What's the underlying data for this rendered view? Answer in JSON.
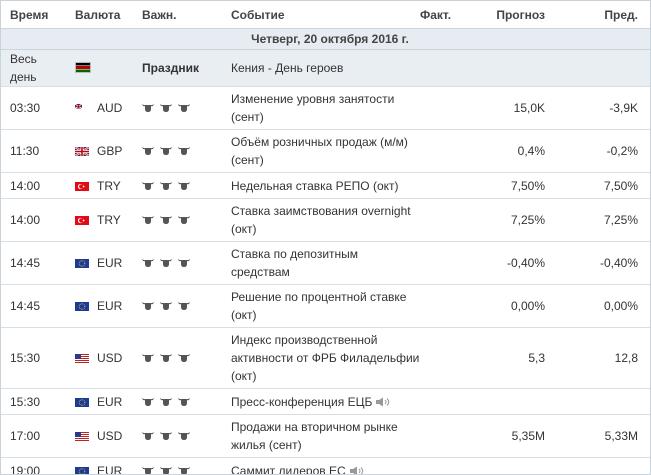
{
  "header": {
    "time": "Время",
    "currency": "Валюта",
    "importance": "Важн.",
    "event": "Событие",
    "actual": "Факт.",
    "forecast": "Прогноз",
    "previous": "Пред."
  },
  "date_label": "Четверг, 20 октября 2016 г.",
  "holiday": {
    "time": "Весь день",
    "flag": "kenya-flag",
    "importance": "Праздник",
    "event": "Кения - День героев"
  },
  "events": [
    {
      "time": "03:30",
      "flag": "australia-flag",
      "currency": "AUD",
      "event": "Изменение уровня занятости (сент)",
      "actual": "",
      "forecast": "15,0K",
      "previous": "-3,9K",
      "speech": false
    },
    {
      "time": "11:30",
      "flag": "uk-flag",
      "currency": "GBP",
      "event": "Объём розничных продаж (м/м) (сент)",
      "actual": "",
      "forecast": "0,4%",
      "previous": "-0,2%",
      "speech": false
    },
    {
      "time": "14:00",
      "flag": "turkey-flag",
      "currency": "TRY",
      "event": "Недельная ставка РЕПО (окт)",
      "actual": "",
      "forecast": "7,50%",
      "previous": "7,50%",
      "speech": false
    },
    {
      "time": "14:00",
      "flag": "turkey-flag",
      "currency": "TRY",
      "event": "Ставка заимствования overnight (окт)",
      "actual": "",
      "forecast": "7,25%",
      "previous": "7,25%",
      "speech": false
    },
    {
      "time": "14:45",
      "flag": "eu-flag",
      "currency": "EUR",
      "event": "Ставка по депозитным средствам",
      "actual": "",
      "forecast": "-0,40%",
      "previous": "-0,40%",
      "speech": false
    },
    {
      "time": "14:45",
      "flag": "eu-flag",
      "currency": "EUR",
      "event": "Решение по процентной ставке (окт)",
      "actual": "",
      "forecast": "0,00%",
      "previous": "0,00%",
      "speech": false
    },
    {
      "time": "15:30",
      "flag": "usa-flag",
      "currency": "USD",
      "event": "Индекс производственной активности от ФРБ Филадельфии (окт)",
      "actual": "",
      "forecast": "5,3",
      "previous": "12,8",
      "speech": false
    },
    {
      "time": "15:30",
      "flag": "eu-flag",
      "currency": "EUR",
      "event": "Пресс-конференция ЕЦБ",
      "actual": "",
      "forecast": "",
      "previous": "",
      "speech": true
    },
    {
      "time": "17:00",
      "flag": "usa-flag",
      "currency": "USD",
      "event": "Продажи на вторичном рынке жилья (сент)",
      "actual": "",
      "forecast": "5,35M",
      "previous": "5,33M",
      "speech": false
    },
    {
      "time": "19:00",
      "flag": "eu-flag",
      "currency": "EUR",
      "event": "Саммит лидеров ЕС",
      "actual": "",
      "forecast": "",
      "previous": "",
      "speech": true
    }
  ]
}
